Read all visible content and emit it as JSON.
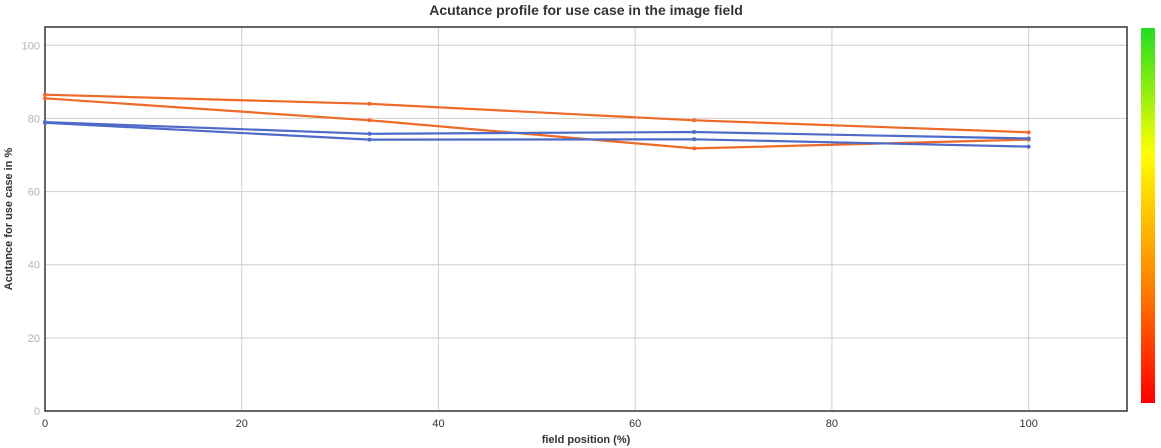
{
  "chart_data": {
    "type": "line",
    "title": "Acutance profile for use case in the image field",
    "xlabel": "field position (%)",
    "ylabel": "Acutance for use case in %",
    "xlim": [
      0,
      110
    ],
    "ylim": [
      0,
      105
    ],
    "x_ticks": [
      0,
      20,
      40,
      60,
      80,
      100
    ],
    "y_ticks": [
      0,
      20,
      40,
      60,
      80,
      100
    ],
    "grid": true,
    "legend": "none",
    "series": [
      {
        "color": "#ee6a28",
        "x": [
          0,
          33,
          66,
          100
        ],
        "y": [
          86.5,
          84.0,
          79.5,
          76.2
        ]
      },
      {
        "color": "#ee6a28",
        "x": [
          0,
          33,
          66,
          100
        ],
        "y": [
          85.5,
          79.5,
          71.8,
          74.2
        ]
      },
      {
        "color": "#4f6bc8",
        "x": [
          0,
          33,
          66,
          100
        ],
        "y": [
          79.0,
          75.8,
          76.3,
          74.5
        ]
      },
      {
        "color": "#4f6bc8",
        "x": [
          0,
          33,
          66,
          100
        ],
        "y": [
          78.8,
          74.2,
          74.3,
          72.3
        ]
      }
    ],
    "color_scale": {
      "colors": [
        "#22dd22",
        "#ffff00",
        "#ff8800",
        "#ff0000"
      ]
    }
  }
}
